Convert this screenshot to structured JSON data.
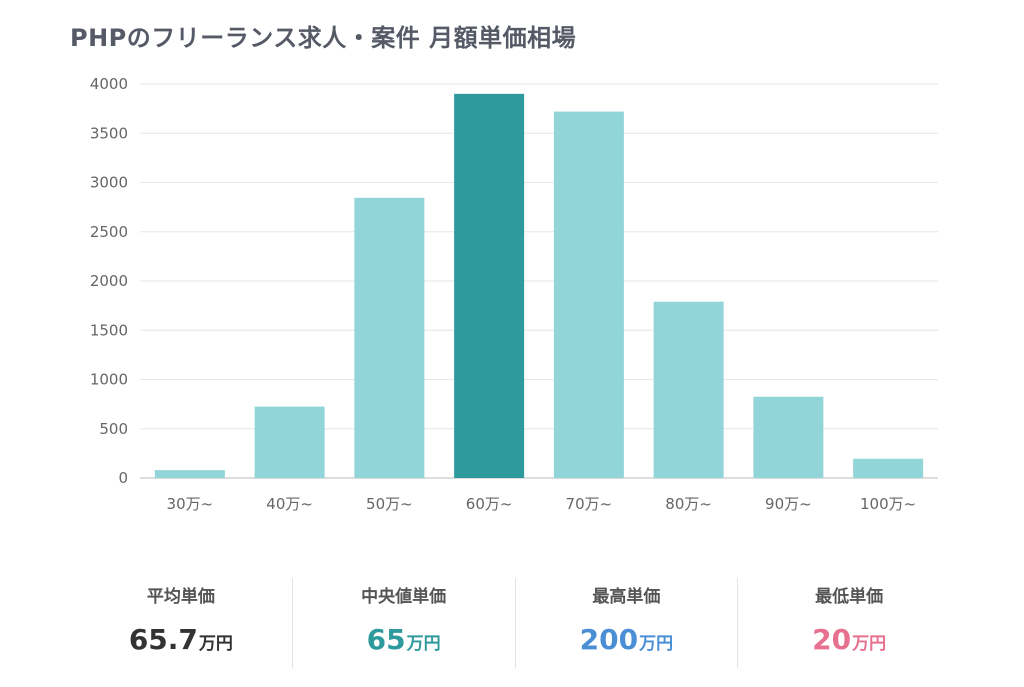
{
  "title": "PHPのフリーランス求人・案件 月額単価相場",
  "chart_data": {
    "type": "bar",
    "categories": [
      "30万~",
      "40万~",
      "50万~",
      "60万~",
      "70万~",
      "80万~",
      "90万~",
      "100万~"
    ],
    "values": [
      80,
      725,
      2845,
      3900,
      3720,
      1790,
      825,
      195
    ],
    "yticks": [
      "0",
      "500",
      "1000",
      "1500",
      "2000",
      "2500",
      "3000",
      "3500",
      "4000"
    ],
    "ylim": [
      0,
      4000
    ],
    "grid": true,
    "highlight_index": 3,
    "colors": {
      "bar": "#92d5d9",
      "highlight": "#2f9a9e"
    }
  },
  "stats": [
    {
      "label": "平均単価",
      "value": "65.7",
      "unit": "万円",
      "color": "#333333"
    },
    {
      "label": "中央値単価",
      "value": "65",
      "unit": "万円",
      "color": "#2f9a9e"
    },
    {
      "label": "最高単価",
      "value": "200",
      "unit": "万円",
      "color": "#4a8fd6"
    },
    {
      "label": "最低単価",
      "value": "20",
      "unit": "万円",
      "color": "#e8708f"
    }
  ]
}
